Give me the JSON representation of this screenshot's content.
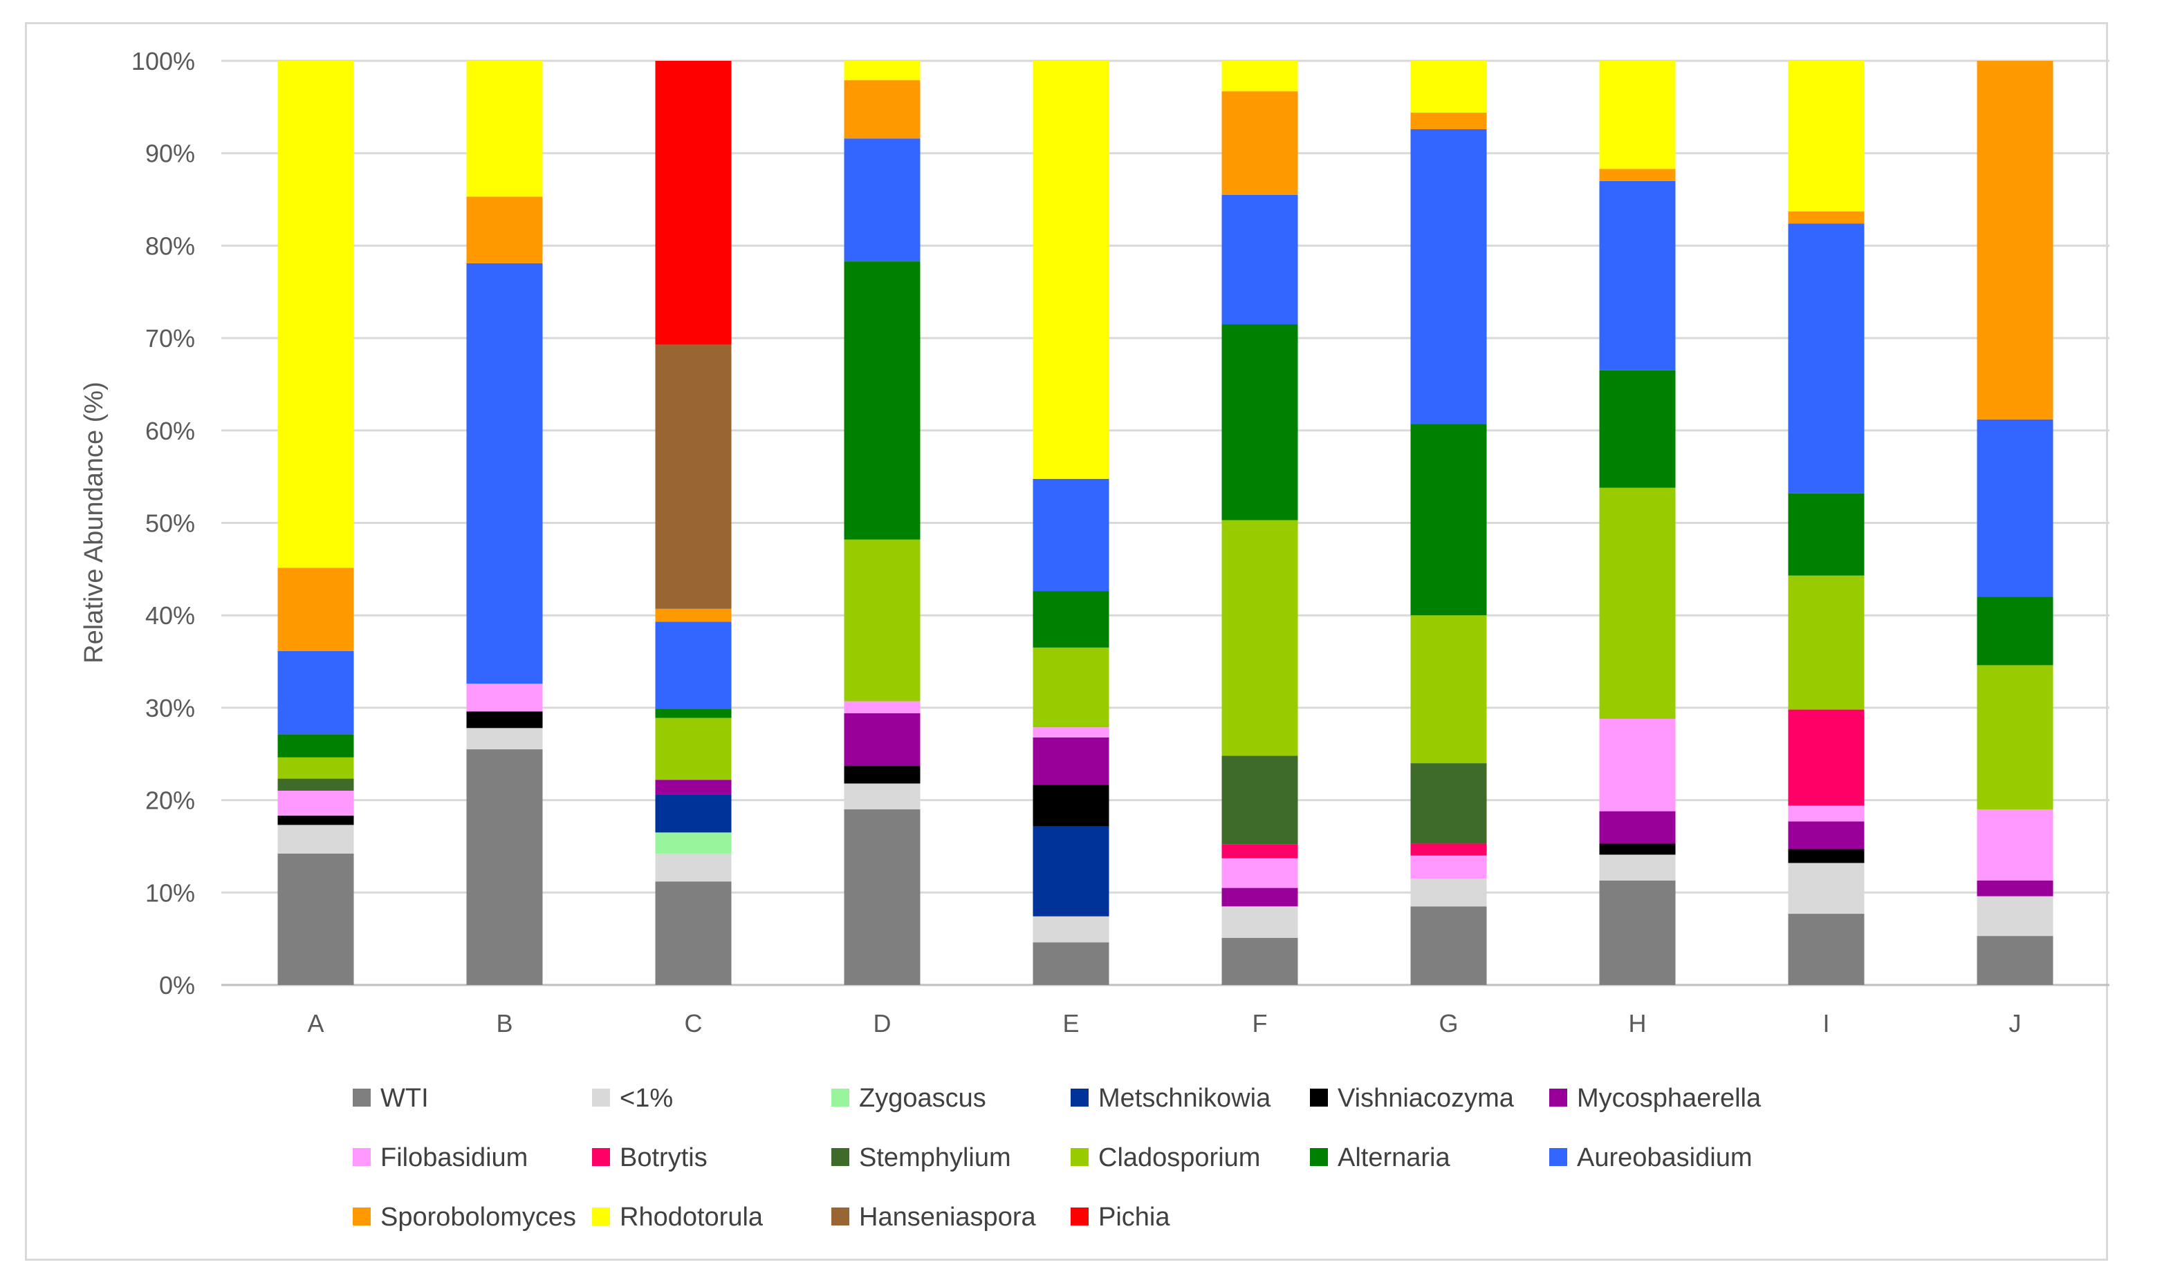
{
  "chart_data": {
    "type": "bar",
    "stacked": true,
    "normalized": true,
    "title": "",
    "xlabel": "",
    "ylabel": "Relative Abundance (%)",
    "ylim": [
      0,
      100
    ],
    "ytick_values": [
      0,
      10,
      20,
      30,
      40,
      50,
      60,
      70,
      80,
      90,
      100
    ],
    "ytick_labels": [
      "0%",
      "10%",
      "20%",
      "30%",
      "40%",
      "50%",
      "60%",
      "70%",
      "80%",
      "90%",
      "100%"
    ],
    "grid": true,
    "legend_position": "bottom",
    "categories": [
      "A",
      "B",
      "C",
      "D",
      "E",
      "F",
      "G",
      "H",
      "I",
      "J"
    ],
    "series": [
      {
        "name": "WTI",
        "color": "#7f7f7f",
        "values": [
          14.2,
          25.5,
          11.2,
          19.0,
          4.6,
          5.1,
          8.5,
          11.3,
          7.7,
          5.3
        ]
      },
      {
        "name": "<1%",
        "color": "#d9d9d9",
        "values": [
          3.1,
          2.3,
          3.0,
          2.8,
          2.8,
          3.4,
          3.0,
          2.8,
          5.5,
          4.3
        ]
      },
      {
        "name": "Zygoascus",
        "color": "#99f59c",
        "values": [
          0,
          0,
          2.3,
          0,
          0,
          0,
          0,
          0,
          0,
          0
        ]
      },
      {
        "name": "Metschnikowia",
        "color": "#003399",
        "values": [
          0,
          0,
          4.1,
          0,
          9.7,
          0,
          0,
          0,
          0,
          0
        ]
      },
      {
        "name": "Vishniacozyma",
        "color": "#000000",
        "values": [
          1.0,
          1.8,
          0,
          1.9,
          4.5,
          0,
          0,
          1.2,
          1.5,
          0
        ]
      },
      {
        "name": "Mycosphaerella",
        "color": "#990099",
        "values": [
          0,
          0,
          1.6,
          5.7,
          5.1,
          2.0,
          0,
          3.5,
          3.0,
          1.7
        ]
      },
      {
        "name": "Filobasidium",
        "color": "#ff99ff",
        "values": [
          2.7,
          3.0,
          0,
          1.3,
          1.1,
          3.2,
          2.5,
          10.0,
          1.7,
          7.7
        ]
      },
      {
        "name": "Botrytis",
        "color": "#ff0066",
        "values": [
          0,
          0,
          0,
          0,
          0,
          1.5,
          1.3,
          0,
          10.4,
          0
        ]
      },
      {
        "name": "Stemphylium",
        "color": "#3f6b2a",
        "values": [
          1.3,
          0,
          0,
          0,
          0,
          9.6,
          8.7,
          0,
          0,
          0
        ]
      },
      {
        "name": "Cladosporium",
        "color": "#99cc00",
        "values": [
          2.3,
          0,
          6.7,
          17.5,
          8.6,
          25.5,
          16.0,
          25.0,
          14.5,
          15.6
        ]
      },
      {
        "name": "Alternaria",
        "color": "#008000",
        "values": [
          2.5,
          0,
          1.0,
          30.1,
          6.1,
          21.2,
          20.7,
          12.7,
          8.9,
          7.4
        ]
      },
      {
        "name": "Aureobasidium",
        "color": "#3366ff",
        "values": [
          9.0,
          45.5,
          9.4,
          13.3,
          12.1,
          14.0,
          31.9,
          20.5,
          29.2,
          19.2
        ]
      },
      {
        "name": "Sporobolomyces",
        "color": "#ff9900",
        "values": [
          9.0,
          7.2,
          1.4,
          6.3,
          0,
          11.2,
          1.8,
          1.3,
          1.3,
          38.8
        ]
      },
      {
        "name": "Rhodotorula",
        "color": "#ffff00",
        "values": [
          54.8,
          14.7,
          0,
          2.1,
          45.1,
          3.3,
          5.6,
          11.7,
          16.3,
          0
        ]
      },
      {
        "name": "Hanseniaspora",
        "color": "#996633",
        "values": [
          0,
          0,
          28.6,
          0,
          0,
          0,
          0,
          0,
          0,
          0
        ]
      },
      {
        "name": "Pichia",
        "color": "#ff0000",
        "values": [
          0,
          0,
          30.7,
          0,
          0,
          0,
          0,
          0,
          0,
          0
        ]
      }
    ]
  }
}
